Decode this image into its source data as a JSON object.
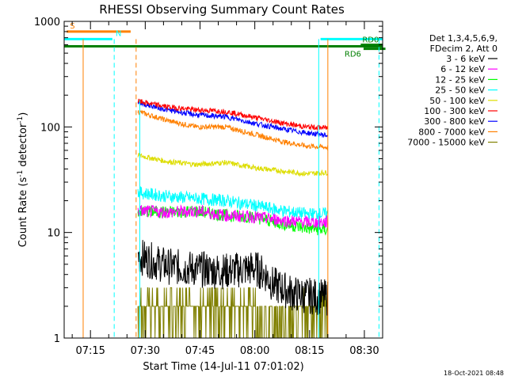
{
  "chart_data": {
    "type": "line",
    "title": "RHESSI Observing Summary Count Rates",
    "xlabel": "Start Time (14-Jul-11 07:01:02)",
    "ylabel": "Count Rate (s⁻¹ detector⁻¹)",
    "ylabel_parts": {
      "pre": "Count Rate (s",
      "sup1": "-1",
      "mid": " detector",
      "sup2": "-1",
      "post": ")"
    },
    "yscale": "log",
    "ylim": [
      1,
      1000
    ],
    "xlim": [
      6.8,
      94
    ],
    "x_units": "minutes after 07:01:02",
    "y_ticks": [
      {
        "value": 1,
        "label": "1"
      },
      {
        "value": 10,
        "label": "10"
      },
      {
        "value": 100,
        "label": "100"
      },
      {
        "value": 1000,
        "label": "1000"
      }
    ],
    "x_ticks": [
      {
        "value": 14,
        "label": "07:15"
      },
      {
        "value": 29,
        "label": "07:30"
      },
      {
        "value": 44,
        "label": "07:45"
      },
      {
        "value": 59,
        "label": "08:00"
      },
      {
        "value": 74,
        "label": "08:15"
      },
      {
        "value": 89,
        "label": "08:30"
      }
    ],
    "legend_header": [
      "Det 1,3,4,5,6,9,",
      "FDecim 2, Att 0"
    ],
    "series": [
      {
        "name": "3 - 6 keV",
        "color": "#000000",
        "x": [
          27,
          35,
          43,
          51,
          59,
          62,
          64,
          66,
          70,
          79
        ],
        "values": [
          6,
          4.8,
          4.5,
          4.3,
          4.6,
          4.0,
          3.2,
          3.0,
          2.6,
          2.4
        ]
      },
      {
        "name": "6 - 12 keV",
        "color": "#ff00ff",
        "x": [
          27,
          35,
          43,
          51,
          59,
          67,
          73,
          79
        ],
        "values": [
          16,
          15.5,
          16,
          14.5,
          14,
          13,
          12.5,
          12.5
        ]
      },
      {
        "name": "12 - 25 keV",
        "color": "#00ff00",
        "x": [
          27,
          35,
          43,
          51,
          59,
          67,
          73,
          79
        ],
        "values": [
          16,
          15.5,
          16,
          14.5,
          14,
          12,
          11,
          10.5
        ]
      },
      {
        "name": "25 - 50 keV",
        "color": "#00ffff",
        "x": [
          27,
          35,
          43,
          51,
          59,
          67,
          73,
          79
        ],
        "values": [
          24,
          22,
          21,
          20,
          18,
          16,
          15,
          15
        ]
      },
      {
        "name": "50 - 100 keV",
        "color": "#dddd00",
        "x": [
          27,
          35,
          43,
          51,
          59,
          67,
          73,
          79
        ],
        "values": [
          54,
          47,
          44,
          46,
          41,
          38,
          36,
          37
        ]
      },
      {
        "name": "100 - 300 keV",
        "color": "#ff0000",
        "x": [
          27,
          35,
          43,
          51,
          59,
          67,
          73,
          79
        ],
        "values": [
          175,
          155,
          145,
          140,
          123,
          108,
          100,
          98
        ]
      },
      {
        "name": "300 - 800 keV",
        "color": "#0000ff",
        "x": [
          27,
          35,
          43,
          51,
          59,
          67,
          73,
          79
        ],
        "values": [
          170,
          145,
          130,
          125,
          108,
          95,
          88,
          83
        ]
      },
      {
        "name": "800 - 7000 keV",
        "color": "#ff8000",
        "x": [
          27,
          35,
          43,
          51,
          59,
          67,
          73,
          79
        ],
        "values": [
          140,
          115,
          100,
          100,
          85,
          72,
          66,
          64
        ]
      },
      {
        "name": "7000 - 15000 keV",
        "color": "#808000",
        "x": [
          27,
          79
        ],
        "values": [
          2,
          2
        ]
      }
    ],
    "annotations": {
      "attenuator_S": {
        "label": "S",
        "x_start": 7.5,
        "x_end": 25,
        "value": 800
      },
      "night_N": {
        "label": "N",
        "x_start": 6.8,
        "x_end": 20,
        "value": 680
      },
      "night_after": {
        "x_start": 77,
        "x_end": 94,
        "value": 680
      },
      "rd0": {
        "label": "RD0",
        "x_start": 88,
        "x_end": 94,
        "value": 600
      },
      "rd6": {
        "label": "RD6",
        "x_start": 84,
        "x_end": 90,
        "value": 550
      },
      "saa_line_value": 580,
      "vlines": [
        {
          "x": 12,
          "color": "#ff8000",
          "style": "solid"
        },
        {
          "x": 20.5,
          "color": "#00ffff",
          "style": "dashed"
        },
        {
          "x": 26.5,
          "color": "#ff8000",
          "style": "dashed"
        },
        {
          "x": 27.5,
          "color": "#00ffff",
          "style": "solid"
        },
        {
          "x": 76.5,
          "color": "#00ffff",
          "style": "solid"
        },
        {
          "x": 79,
          "color": "#ff8000",
          "style": "solid"
        },
        {
          "x": 93,
          "color": "#00ffff",
          "style": "dashed"
        }
      ]
    },
    "timestamp": "18-Oct-2021 08:48"
  }
}
